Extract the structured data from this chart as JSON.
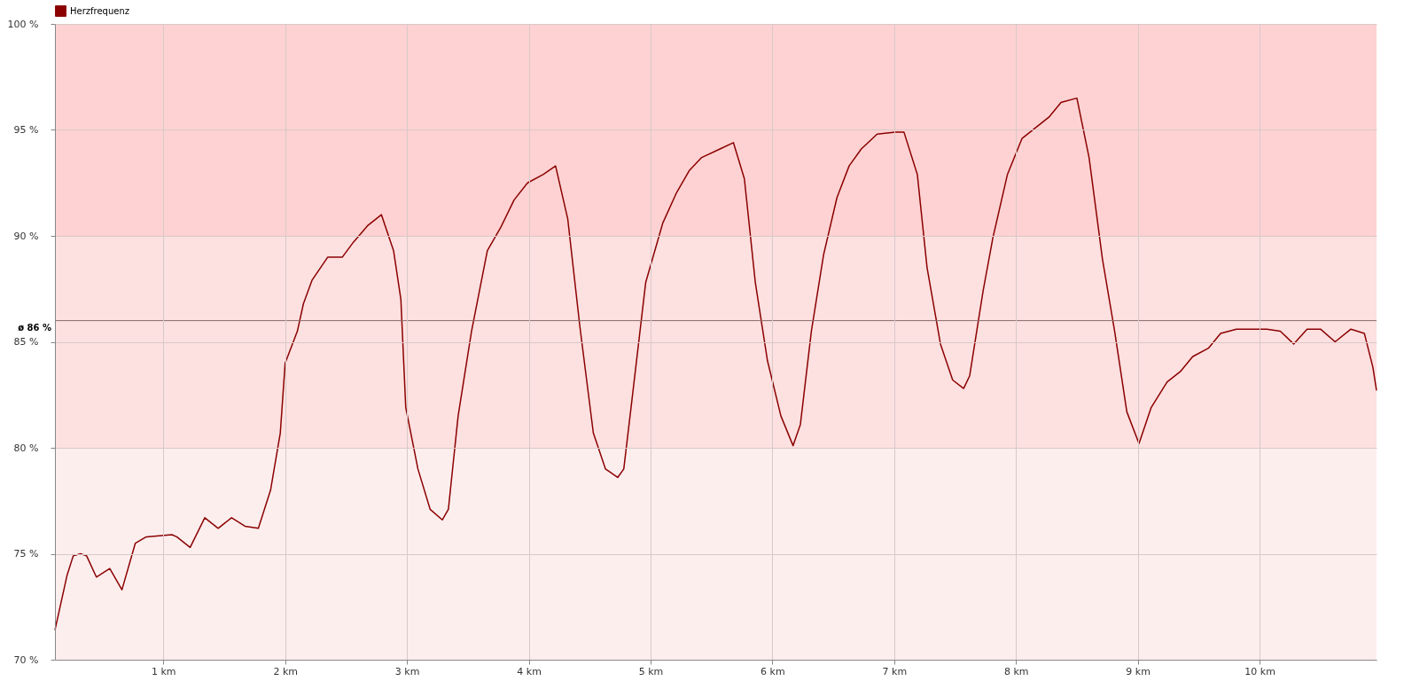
{
  "chart_data": {
    "type": "line",
    "x": [
      0.11,
      0.21,
      0.26,
      0.32,
      0.37,
      0.45,
      0.56,
      0.66,
      0.77,
      0.86,
      1.07,
      1.11,
      1.22,
      1.34,
      1.45,
      1.56,
      1.67,
      1.78,
      1.88,
      1.96,
      2.0,
      2.1,
      2.15,
      2.22,
      2.35,
      2.47,
      2.56,
      2.68,
      2.79,
      2.89,
      2.95,
      2.99,
      3.09,
      3.19,
      3.29,
      3.34,
      3.42,
      3.53,
      3.66,
      3.77,
      3.88,
      3.99,
      4.12,
      4.22,
      4.32,
      4.42,
      4.53,
      4.63,
      4.73,
      4.78,
      4.85,
      4.96,
      5.1,
      5.21,
      5.32,
      5.42,
      5.57,
      5.68,
      5.77,
      5.86,
      5.96,
      6.07,
      6.17,
      6.23,
      6.32,
      6.42,
      6.53,
      6.63,
      6.73,
      6.86,
      7.01,
      7.08,
      7.19,
      7.27,
      7.38,
      7.48,
      7.57,
      7.62,
      7.73,
      7.81,
      7.93,
      8.05,
      8.16,
      8.27,
      8.37,
      8.5,
      8.6,
      8.71,
      8.81,
      8.91,
      9.01,
      9.11,
      9.24,
      9.35,
      9.45,
      9.58,
      9.68,
      9.81,
      9.94,
      10.06,
      10.17,
      10.28,
      10.39,
      10.5,
      10.62,
      10.75,
      10.86,
      10.93,
      10.96
    ],
    "series": [
      {
        "name": "Herzfrequenz",
        "color": "#8b0000",
        "values": [
          71.4,
          74.0,
          74.9,
          75.0,
          74.9,
          73.9,
          74.3,
          73.3,
          75.5,
          75.8,
          75.9,
          75.8,
          75.3,
          76.7,
          76.2,
          76.7,
          76.3,
          76.2,
          78.0,
          80.7,
          84.0,
          85.5,
          86.8,
          87.9,
          89.0,
          89.0,
          89.7,
          90.5,
          91.0,
          89.3,
          87.0,
          81.9,
          79.0,
          77.1,
          76.6,
          77.1,
          81.5,
          85.5,
          89.3,
          90.4,
          91.7,
          92.5,
          92.9,
          93.3,
          90.8,
          85.7,
          80.7,
          79.0,
          78.6,
          79.0,
          82.4,
          87.8,
          90.6,
          92.0,
          93.1,
          93.7,
          94.1,
          94.4,
          92.7,
          87.8,
          84.1,
          81.5,
          80.1,
          81.1,
          85.5,
          89.1,
          91.8,
          93.3,
          94.1,
          94.8,
          94.9,
          94.9,
          92.9,
          88.5,
          84.9,
          83.2,
          82.8,
          83.4,
          87.4,
          89.9,
          92.9,
          94.6,
          95.1,
          95.6,
          96.3,
          96.5,
          93.7,
          88.9,
          85.5,
          81.7,
          80.2,
          81.9,
          83.1,
          83.6,
          84.3,
          84.7,
          85.4,
          85.6,
          85.6,
          85.6,
          85.5,
          84.9,
          85.6,
          85.6,
          85.0,
          85.6,
          85.4,
          83.8,
          82.7
        ]
      }
    ],
    "xlim": [
      0.11,
      10.96
    ],
    "xticks": [
      {
        "value": 1,
        "label": "1 km"
      },
      {
        "value": 2,
        "label": "2 km"
      },
      {
        "value": 3,
        "label": "3 km"
      },
      {
        "value": 4,
        "label": "4 km"
      },
      {
        "value": 5,
        "label": "5 km"
      },
      {
        "value": 6,
        "label": "6 km"
      },
      {
        "value": 7,
        "label": "7 km"
      },
      {
        "value": 8,
        "label": "8 km"
      },
      {
        "value": 9,
        "label": "9 km"
      },
      {
        "value": 10,
        "label": "10 km"
      }
    ],
    "ylim": [
      70,
      100
    ],
    "yticks": [
      {
        "value": 70,
        "label": "70 %"
      },
      {
        "value": 75,
        "label": "75 %"
      },
      {
        "value": 80,
        "label": "80 %"
      },
      {
        "value": 85,
        "label": "85 %"
      },
      {
        "value": 90,
        "label": "90 %"
      },
      {
        "value": 95,
        "label": "95 %"
      },
      {
        "value": 100,
        "label": "100 %"
      }
    ],
    "bands": [
      {
        "axis": "y",
        "from": 70,
        "to": 80,
        "color": "#fdeeee"
      },
      {
        "axis": "y",
        "from": 80,
        "to": 90,
        "color": "#fde0e0"
      },
      {
        "axis": "y",
        "from": 90,
        "to": 100,
        "color": "#fed2d2"
      }
    ],
    "ref_lines": [
      {
        "axis": "y",
        "value": 86,
        "label": "ø 86 %",
        "color": "#8a6a6a"
      }
    ],
    "grid": true,
    "legend": "top left",
    "marker": "none",
    "line_style": "solid"
  }
}
